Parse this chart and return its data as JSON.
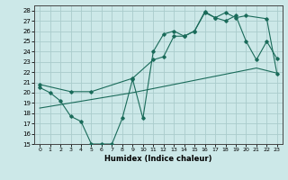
{
  "bg_color": "#cce8e8",
  "grid_color": "#aacccc",
  "line_color": "#1a6b5a",
  "line1_x": [
    0,
    1,
    2,
    3,
    4,
    5,
    6,
    7,
    8,
    9,
    10,
    11,
    12,
    13,
    14,
    15,
    16,
    17,
    18,
    19,
    20,
    21,
    22,
    23
  ],
  "line1_y": [
    20.5,
    20.0,
    19.2,
    17.7,
    17.2,
    15.0,
    15.0,
    15.0,
    17.5,
    21.3,
    17.5,
    24.0,
    25.7,
    26.0,
    25.5,
    26.0,
    27.9,
    27.3,
    27.0,
    27.5,
    25.0,
    23.2,
    25.0,
    23.3
  ],
  "line2_x": [
    0,
    3,
    5,
    9,
    11,
    12,
    13,
    14,
    15,
    16,
    17,
    18,
    19,
    20,
    22,
    23
  ],
  "line2_y": [
    20.8,
    20.1,
    20.1,
    21.4,
    23.2,
    23.5,
    25.5,
    25.5,
    26.0,
    27.8,
    27.3,
    27.8,
    27.3,
    27.5,
    27.2,
    21.8
  ],
  "line3_x": [
    0,
    3,
    6,
    9,
    12,
    15,
    18,
    21,
    23
  ],
  "line3_y": [
    18.5,
    19.0,
    19.5,
    20.0,
    20.6,
    21.2,
    21.8,
    22.4,
    21.9
  ],
  "xlabel": "Humidex (Indice chaleur)",
  "xlim": [
    -0.5,
    23.5
  ],
  "ylim": [
    15,
    28.5
  ],
  "yticks": [
    15,
    16,
    17,
    18,
    19,
    20,
    21,
    22,
    23,
    24,
    25,
    26,
    27,
    28
  ],
  "xticks": [
    0,
    1,
    2,
    3,
    4,
    5,
    6,
    7,
    8,
    9,
    10,
    11,
    12,
    13,
    14,
    15,
    16,
    17,
    18,
    19,
    20,
    21,
    22,
    23
  ],
  "xtick_labels": [
    "0",
    "1",
    "2",
    "3",
    "4",
    "5",
    "6",
    "7",
    "8",
    "9",
    "10",
    "11",
    "12",
    "13",
    "14",
    "15",
    "16",
    "17",
    "18",
    "19",
    "20",
    "21",
    "22",
    "23"
  ],
  "figsize": [
    3.2,
    2.0
  ],
  "dpi": 100
}
